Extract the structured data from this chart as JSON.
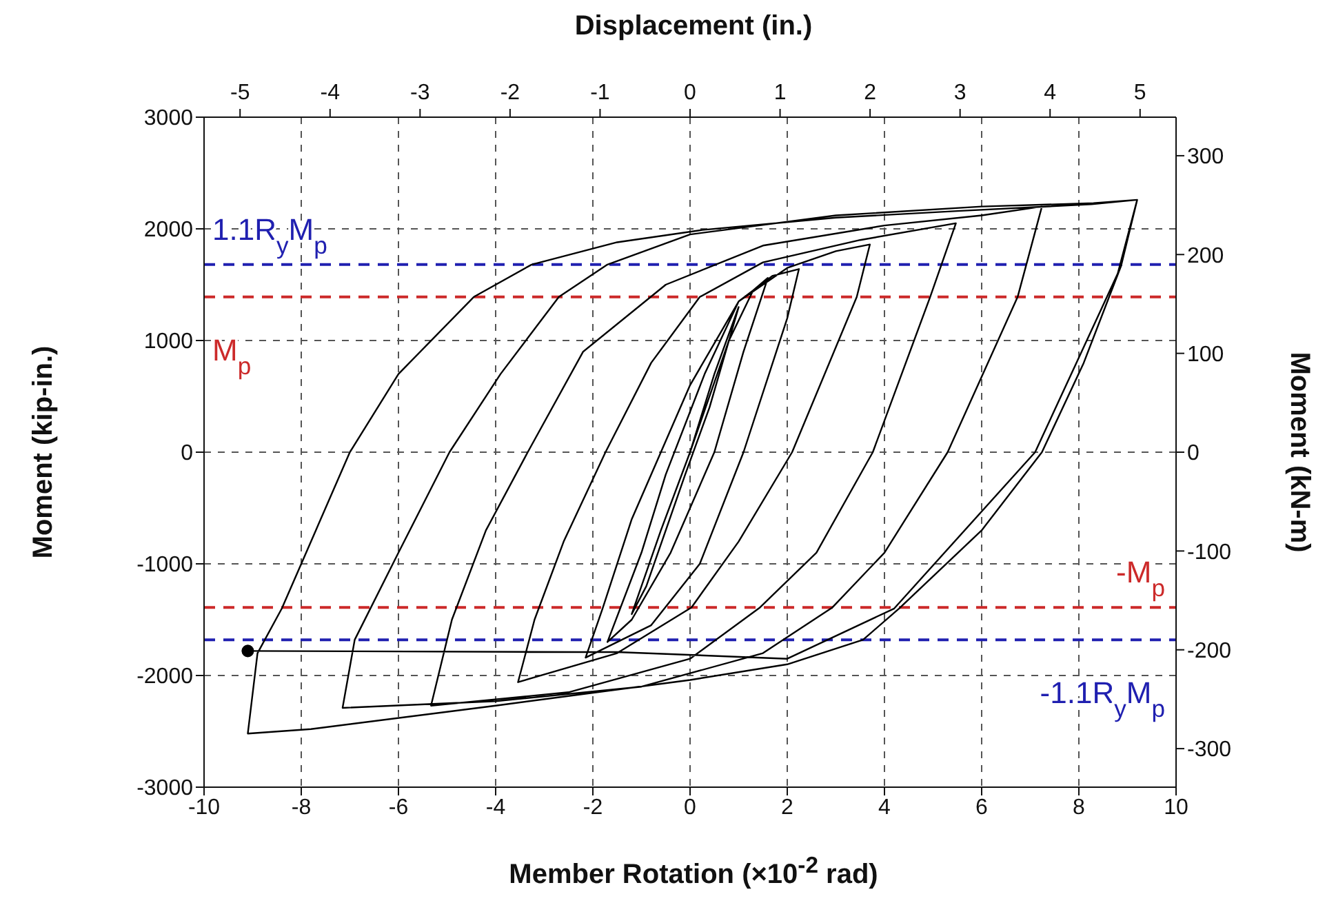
{
  "chart_data": {
    "type": "line",
    "xlabel": "Member Rotation (×10$^{-2}$ rad)",
    "ylabel": "Moment (kip-in.)",
    "y2label": "Moment (kN-m)",
    "x2label": "Displacement (in.)",
    "xlim": [
      -10,
      10
    ],
    "xticks": [
      -10,
      -8,
      -6,
      -4,
      -2,
      0,
      2,
      4,
      6,
      8,
      10
    ],
    "ylim": [
      -3000,
      3000
    ],
    "yticks": [
      -3000,
      -2000,
      -1000,
      0,
      1000,
      2000,
      3000
    ],
    "y2lim": [
      -339,
      339
    ],
    "y2ticks": [
      -300,
      -200,
      -100,
      0,
      100,
      200,
      300
    ],
    "x2lim": [
      -5.4,
      5.4
    ],
    "x2ticks": [
      -5,
      -4,
      -3,
      -2,
      -1,
      0,
      1,
      2,
      3,
      4,
      5
    ],
    "grid": true,
    "line_style": "solid",
    "ref_lines": [
      {
        "axis": "y",
        "value": 1680,
        "label": "1.1R$_{y}$M$_{p}$",
        "color": "#2020b0",
        "line_style": "dashed"
      },
      {
        "axis": "y",
        "value": 1390,
        "label": "M$_{p}$",
        "color": "#cc2a2a",
        "line_style": "dashed"
      },
      {
        "axis": "y",
        "value": -1390,
        "label": "-M$_{p}$",
        "color": "#cc2a2a",
        "line_style": "dashed"
      },
      {
        "axis": "y",
        "value": -1680,
        "label": "-1.1R$_{y}$M$_{p}$",
        "color": "#2020b0",
        "line_style": "dashed"
      }
    ],
    "series": [
      {
        "type": "line",
        "color": "#000000",
        "x": [
          0,
          0.5,
          1.0,
          0.4,
          -0.1,
          -0.9,
          -1.2,
          -0.6,
          0,
          0.8,
          1.3,
          1.6,
          1.1,
          0.5,
          -0.4,
          -1.2,
          -1.7,
          -1.0,
          -0.5,
          0.3,
          1.0,
          1.7,
          2.24,
          2.0,
          1.1,
          0.2,
          -0.8,
          -2.15,
          -1.8,
          -1.2,
          -0.6,
          0,
          1.0,
          2.0,
          3.0,
          3.7,
          3.43,
          2.1,
          1.0,
          0.03,
          -1.5,
          -3.54,
          -3.2,
          -2.6,
          -1.74,
          -0.8,
          0.2,
          1.5,
          3.5,
          5.47,
          4.94,
          3.76,
          2.6,
          1.44,
          0,
          -2.5,
          -5.33,
          -4.9,
          -4.2,
          -3.34,
          -2.2,
          -0.5,
          1.5,
          4,
          6,
          7.24,
          6.74,
          5.3,
          4.0,
          2.93,
          1.5,
          -1,
          -4,
          -7.15,
          -6.9,
          -6.0,
          -4.95,
          -3.9,
          -2.7,
          -1.7,
          0,
          3,
          6,
          8.3,
          9.2,
          8.87,
          8.1,
          7.24,
          6.0,
          4.3,
          3.56,
          2,
          0,
          -4,
          -7.8,
          -9.1,
          -8.9,
          -8.4,
          -7.7,
          -7.0,
          -6,
          -4.45,
          -3.26,
          -1.5,
          0.25,
          3,
          5.5,
          8.26,
          9.2,
          8.8,
          7.1,
          4.2,
          2,
          -1.5,
          -2.3,
          -9.1
        ],
        "values": [
          0,
          700,
          1300,
          400,
          -200,
          -1200,
          -1450,
          -700,
          0,
          1000,
          1450,
          1560,
          900,
          0,
          -900,
          -1500,
          -1700,
          -900,
          -200,
          700,
          1350,
          1580,
          1640,
          1200,
          0,
          -1000,
          -1550,
          -1840,
          -1400,
          -600,
          0,
          600,
          1350,
          1650,
          1800,
          1860,
          1390,
          0,
          -800,
          -1390,
          -1800,
          -2060,
          -1500,
          -800,
          0,
          800,
          1390,
          1700,
          1900,
          2050,
          1390,
          0,
          -900,
          -1390,
          -1850,
          -2150,
          -2270,
          -1500,
          -700,
          0,
          900,
          1500,
          1850,
          2030,
          2120,
          2200,
          1390,
          0,
          -900,
          -1390,
          -1800,
          -2100,
          -2230,
          -2290,
          -1680,
          -900,
          0,
          700,
          1390,
          1680,
          1950,
          2120,
          2200,
          2230,
          2260,
          1670,
          800,
          0,
          -700,
          -1400,
          -1680,
          -1900,
          -2040,
          -2270,
          -2480,
          -2520,
          -1800,
          -1400,
          -700,
          0,
          700,
          1390,
          1680,
          1880,
          1990,
          2100,
          2160,
          2220,
          2260,
          1600,
          0,
          -1400,
          -1850,
          -1790,
          -1790,
          -1780
        ]
      },
      {
        "type": "scatter",
        "color": "#000000",
        "marker": "circle",
        "x": [
          -9.1
        ],
        "values": [
          -1780
        ]
      }
    ]
  }
}
